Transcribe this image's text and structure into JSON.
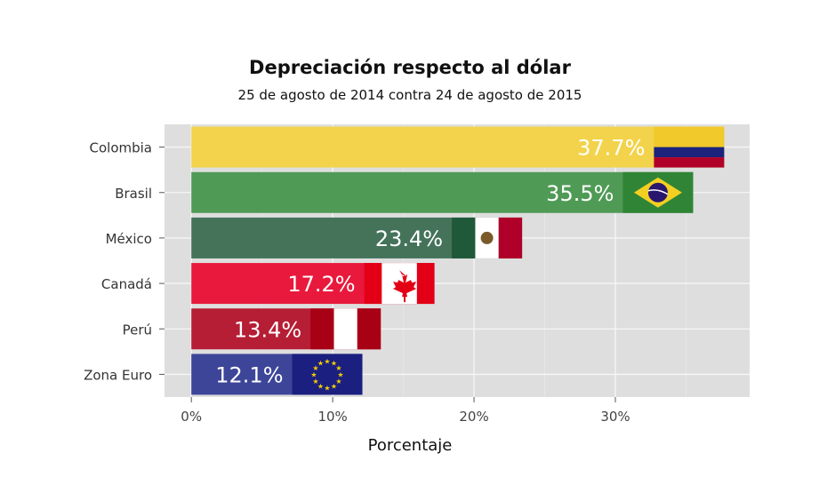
{
  "chart_data": {
    "type": "bar",
    "orientation": "horizontal",
    "title": "Depreciación respecto al dólar",
    "subtitle": "25 de agosto de 2014 contra 24 de agosto de 2015",
    "xlabel": "Porcentaje",
    "ylabel": "",
    "xlim": [
      -1.9,
      39.5
    ],
    "xticks": [
      0,
      10,
      20,
      30
    ],
    "xtick_labels": [
      "0%",
      "10%",
      "20%",
      "30%"
    ],
    "grid": true,
    "categories": [
      "Colombia",
      "Brasil",
      "México",
      "Canadá",
      "Perú",
      "Zona Euro"
    ],
    "values": [
      37.7,
      35.5,
      23.4,
      17.2,
      13.4,
      12.1
    ],
    "data_labels": [
      "37.7%",
      "35.5%",
      "23.4%",
      "17.2%",
      "13.4%",
      "12.1%"
    ],
    "bar_colors": [
      "#f2d34b",
      "#4f9a55",
      "#44735a",
      "#e8193c",
      "#b51e35",
      "#3d4599"
    ],
    "flags": [
      "colombia-flag",
      "brazil-flag",
      "mexico-flag",
      "canada-flag",
      "peru-flag",
      "eu-flag"
    ],
    "plot_background": "#dedede"
  }
}
